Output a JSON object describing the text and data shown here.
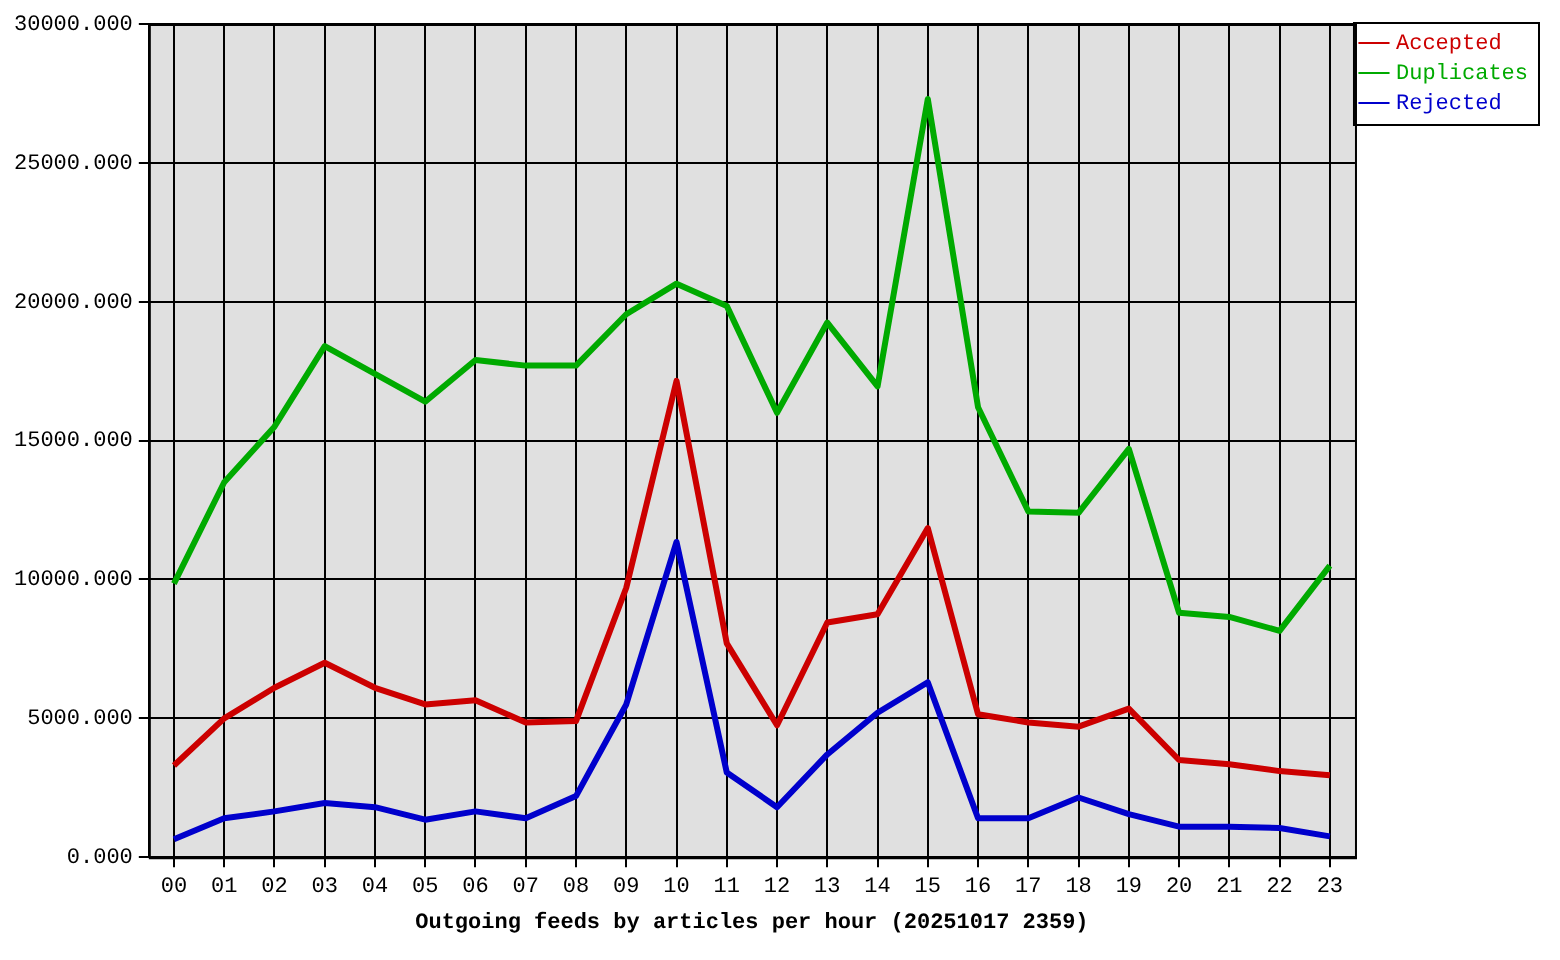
{
  "chart_data": {
    "type": "line",
    "xlabel": "Outgoing feeds by articles per hour (20251017 2359)",
    "categories": [
      "00",
      "01",
      "02",
      "03",
      "04",
      "05",
      "06",
      "07",
      "08",
      "09",
      "10",
      "11",
      "12",
      "13",
      "14",
      "15",
      "16",
      "17",
      "18",
      "19",
      "20",
      "21",
      "22",
      "23"
    ],
    "series": [
      {
        "name": "Accepted",
        "color": "#cc0000",
        "values": [
          3300,
          5000,
          6100,
          7000,
          6100,
          5500,
          5650,
          4850,
          4900,
          9700,
          17150,
          7700,
          4750,
          8450,
          8750,
          11850,
          5150,
          4850,
          4700,
          5350,
          3500,
          3350,
          3100,
          2950
        ]
      },
      {
        "name": "Duplicates",
        "color": "#00aa00",
        "values": [
          9850,
          13500,
          15500,
          18400,
          17400,
          16400,
          17900,
          17700,
          17700,
          19550,
          20650,
          19850,
          16000,
          19250,
          16950,
          27300,
          16200,
          12450,
          12400,
          14700,
          8800,
          8650,
          8150,
          10500
        ]
      },
      {
        "name": "Rejected",
        "color": "#0000cc",
        "values": [
          650,
          1400,
          1650,
          1950,
          1800,
          1350,
          1650,
          1400,
          2200,
          5500,
          11350,
          3050,
          1800,
          3700,
          5200,
          6300,
          1400,
          1400,
          2150,
          1550,
          1100,
          1100,
          1050,
          750
        ]
      }
    ],
    "ylim": [
      0,
      30000
    ],
    "yticks": [
      {
        "value": 0,
        "label": "0.000"
      },
      {
        "value": 5000,
        "label": "5000.000"
      },
      {
        "value": 10000,
        "label": "10000.000"
      },
      {
        "value": 15000,
        "label": "15000.000"
      },
      {
        "value": 20000,
        "label": "20000.000"
      },
      {
        "value": 25000,
        "label": "25000.000"
      },
      {
        "value": 30000,
        "label": "30000.000"
      }
    ],
    "grid": true,
    "legend": "top right",
    "marker": "none",
    "line_style": "solid"
  }
}
